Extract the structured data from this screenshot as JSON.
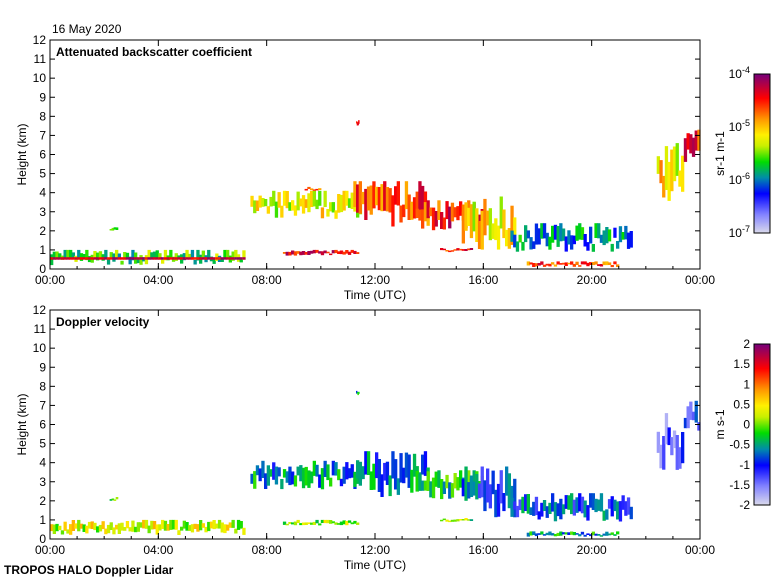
{
  "date_label": "16 May 2020",
  "footer": "TROPOS HALO Doppler Lidar",
  "chart_data": [
    {
      "type": "heatmap",
      "title": "Attenuated backscatter coefficient",
      "xlabel": "Time (UTC)",
      "ylabel": "Height (km)",
      "xlim": [
        0,
        24
      ],
      "ylim": [
        0,
        12
      ],
      "xticks": [
        "00:00",
        "04:00",
        "08:00",
        "12:00",
        "16:00",
        "20:00",
        "00:00"
      ],
      "yticks": [
        "0",
        "1",
        "2",
        "3",
        "4",
        "5",
        "6",
        "7",
        "8",
        "9",
        "10",
        "11",
        "12"
      ],
      "colorbar": {
        "label": "sr-1 m-1",
        "scale": "log",
        "range": [
          -7,
          -4
        ],
        "ticks": [
          "10-7",
          "10-6",
          "10-5",
          "10-4"
        ]
      },
      "features": [
        {
          "t": [
            0,
            7.2
          ],
          "h": [
            0.2,
            1.0
          ],
          "v": -5.6,
          "core": -4.3
        },
        {
          "t": [
            2.2,
            2.5
          ],
          "h": [
            2.0,
            2.2
          ],
          "v": -5.7
        },
        {
          "t": [
            7.4,
            11.5
          ],
          "h": [
            2.6,
            4.1
          ],
          "v": -5.2
        },
        {
          "t": [
            8.6,
            11.4
          ],
          "h": [
            0.7,
            1.0
          ],
          "v": -4.4
        },
        {
          "t": [
            9.4,
            10.0
          ],
          "h": [
            4.1,
            4.3
          ],
          "v": -4.6
        },
        {
          "t": [
            11.3,
            11.4
          ],
          "h": [
            7.5,
            7.8
          ],
          "v": -4.4
        },
        {
          "t": [
            11.2,
            14.0
          ],
          "h": [
            2.2,
            4.6
          ],
          "v": -4.6
        },
        {
          "t": [
            13.5,
            16.0
          ],
          "h": [
            2.0,
            3.6
          ],
          "v": -4.5
        },
        {
          "t": [
            14.4,
            15.6
          ],
          "h": [
            0.9,
            1.1
          ],
          "v": -4.5
        },
        {
          "t": [
            15.2,
            17.2
          ],
          "h": [
            1.0,
            3.8
          ],
          "v": -5.1
        },
        {
          "t": [
            17.0,
            21.5
          ],
          "h": [
            0.9,
            2.4
          ],
          "v": -5.9
        },
        {
          "t": [
            17.6,
            21.0
          ],
          "h": [
            0.1,
            0.4
          ],
          "v": -4.6
        },
        {
          "t": [
            22.4,
            23.4
          ],
          "h": [
            3.5,
            6.6
          ],
          "v": -5.1
        },
        {
          "t": [
            23.4,
            24.0
          ],
          "h": [
            5.6,
            7.3
          ],
          "v": -4.5
        }
      ]
    },
    {
      "type": "heatmap",
      "title": "Doppler velocity",
      "xlabel": "Time (UTC)",
      "ylabel": "Height (km)",
      "xlim": [
        0,
        24
      ],
      "ylim": [
        0,
        12
      ],
      "xticks": [
        "00:00",
        "04:00",
        "08:00",
        "12:00",
        "16:00",
        "20:00",
        "00:00"
      ],
      "yticks": [
        "0",
        "1",
        "2",
        "3",
        "4",
        "5",
        "6",
        "7",
        "8",
        "9",
        "10",
        "11",
        "12"
      ],
      "colorbar": {
        "label": "m s-1",
        "scale": "linear",
        "range": [
          -2,
          2
        ],
        "ticks": [
          "-2",
          "-1.5",
          "-1",
          "-0.5",
          "0",
          "0.5",
          "1",
          "1.5",
          "2"
        ]
      },
      "features": [
        {
          "t": [
            0,
            7.2
          ],
          "h": [
            0.2,
            1.0
          ],
          "v": 0.3
        },
        {
          "t": [
            2.2,
            2.5
          ],
          "h": [
            2.0,
            2.2
          ],
          "v": -0.3
        },
        {
          "t": [
            7.4,
            11.5
          ],
          "h": [
            2.6,
            4.1
          ],
          "v": -0.6
        },
        {
          "t": [
            8.6,
            11.4
          ],
          "h": [
            0.7,
            1.0
          ],
          "v": 0.1
        },
        {
          "t": [
            11.3,
            11.4
          ],
          "h": [
            7.5,
            7.8
          ],
          "v": -0.4
        },
        {
          "t": [
            11.2,
            14.0
          ],
          "h": [
            2.2,
            4.6
          ],
          "v": -0.7
        },
        {
          "t": [
            13.5,
            16.0
          ],
          "h": [
            2.0,
            3.6
          ],
          "v": -0.3
        },
        {
          "t": [
            14.4,
            15.6
          ],
          "h": [
            0.9,
            1.1
          ],
          "v": 0.0
        },
        {
          "t": [
            15.2,
            17.2
          ],
          "h": [
            1.0,
            3.8
          ],
          "v": -0.9
        },
        {
          "t": [
            17.0,
            21.5
          ],
          "h": [
            0.9,
            2.4
          ],
          "v": -0.8
        },
        {
          "t": [
            17.6,
            21.0
          ],
          "h": [
            0.1,
            0.4
          ],
          "v": -0.5
        },
        {
          "t": [
            22.4,
            23.4
          ],
          "h": [
            3.5,
            6.6
          ],
          "v": -1.3
        },
        {
          "t": [
            23.4,
            24.0
          ],
          "h": [
            5.6,
            7.3
          ],
          "v": -1.2
        }
      ]
    }
  ]
}
